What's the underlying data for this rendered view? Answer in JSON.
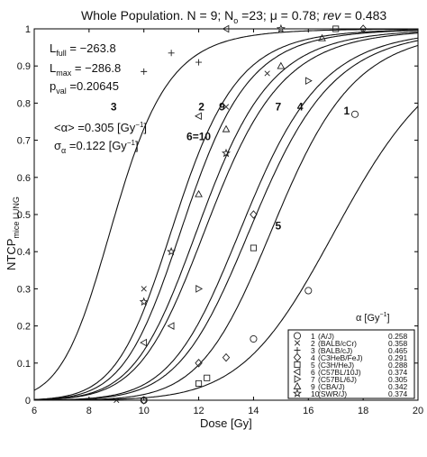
{
  "chart_data": {
    "type": "scatter",
    "title": "Whole Population.  N = 9; N",
    "title_sub": "o",
    "title_rest": " =23; μ = 0.78; ",
    "title_italic": "rev",
    "title_end": " = 0.483",
    "xlabel": "Dose [Gy]",
    "ylabel_main": "NTCP",
    "ylabel_sub": "mice LUNG",
    "xlim": [
      6,
      20
    ],
    "ylim": [
      0,
      1
    ],
    "xticks": [
      6,
      8,
      10,
      12,
      14,
      16,
      18,
      20
    ],
    "yticks": [
      0,
      0.1,
      0.2,
      0.3,
      0.4,
      0.5,
      0.6,
      0.7,
      0.8,
      0.9,
      1
    ],
    "x_tick_labels": [
      "6",
      "8",
      "10",
      "12",
      "14",
      "16",
      "18",
      "20"
    ],
    "y_tick_labels": [
      "0",
      "0.1",
      "0.2",
      "0.3",
      "0.4",
      "0.5",
      "0.6",
      "0.7",
      "0.8",
      "0.9",
      "1"
    ],
    "stats": {
      "l_full_label": "L",
      "l_full_sub": "full",
      "l_full_value": " = −263.8",
      "l_max_label": "L",
      "l_max_sub": "max",
      "l_max_value": " = −286.8",
      "p_val_label": "p",
      "p_val_sub": "val",
      "p_val_value": " =0.20645",
      "alpha_mean_label": "<α> =0.305 [Gy",
      "alpha_mean_exp": "−1",
      "alpha_mean_end": "]",
      "alpha_sigma_label": "σ",
      "alpha_sigma_sub": "α",
      "alpha_sigma_value": " =0.122 [Gy",
      "alpha_sigma_exp": "−1",
      "alpha_sigma_end": "]"
    },
    "legend_header": "α [Gy",
    "legend_header_exp": "−1",
    "legend_header_end": "]",
    "legend_position": "bottom-right",
    "series": [
      {
        "id": "1",
        "name": "(A/J)",
        "alpha": 0.258,
        "alpha_text": "0.258",
        "marker": "circle",
        "d50": 17.3,
        "gamma": 2.3,
        "points": [
          [
            10,
            0.0
          ],
          [
            14,
            0.165
          ],
          [
            16,
            0.295
          ],
          [
            17.7,
            0.77
          ]
        ]
      },
      {
        "id": "2",
        "name": "(BALB/cCr)",
        "alpha": 0.358,
        "alpha_text": "0.358",
        "marker": "x",
        "d50": 12.15,
        "gamma": 2.4,
        "points": [
          [
            9,
            0.0
          ],
          [
            10,
            0.3
          ],
          [
            13,
            0.79
          ],
          [
            14.5,
            0.88
          ]
        ]
      },
      {
        "id": "3",
        "name": "(BALB/cJ)",
        "alpha": 0.465,
        "alpha_text": "0.465",
        "marker": "plus",
        "d50": 8.95,
        "gamma": 2.25,
        "points": [
          [
            10,
            0.885
          ],
          [
            11,
            0.935
          ],
          [
            12,
            0.91
          ]
        ]
      },
      {
        "id": "4",
        "name": "(C3HeB/FeJ)",
        "alpha": 0.291,
        "alpha_text": "0.291",
        "marker": "diamond",
        "d50": 14.9,
        "gamma": 2.6,
        "points": [
          [
            10,
            0.0
          ],
          [
            12,
            0.1
          ],
          [
            13,
            0.115
          ],
          [
            14,
            0.5
          ],
          [
            18,
            1.0
          ]
        ]
      },
      {
        "id": "5",
        "name": "(C3H/HeJ)",
        "alpha": 0.288,
        "alpha_text": "0.288",
        "marker": "square",
        "d50": 14.1,
        "gamma": 2.45,
        "points": [
          [
            12,
            0.045
          ],
          [
            12.3,
            0.06
          ],
          [
            14,
            0.41
          ],
          [
            17,
            1.0
          ]
        ]
      },
      {
        "id": "6",
        "name": "(C57BL/10J)",
        "alpha": 0.374,
        "alpha_text": "0.374",
        "marker": "tri-left",
        "d50": 11.55,
        "gamma": 2.5,
        "points": [
          [
            10,
            0.155
          ],
          [
            11,
            0.2
          ],
          [
            12,
            0.765
          ],
          [
            13,
            1.0
          ]
        ]
      },
      {
        "id": "7",
        "name": "(C57BL/6J)",
        "alpha": 0.305,
        "alpha_text": "0.305",
        "marker": "tri-right",
        "d50": 13.75,
        "gamma": 2.45,
        "points": [
          [
            12,
            0.3
          ],
          [
            16,
            0.86
          ]
        ]
      },
      {
        "id": "9",
        "name": "(CBA/J)",
        "alpha": 0.342,
        "alpha_text": "0.342",
        "marker": "tri-up",
        "d50": 12.45,
        "gamma": 2.35,
        "points": [
          [
            12,
            0.555
          ],
          [
            13,
            0.73
          ],
          [
            15,
            0.9
          ],
          [
            16.5,
            0.975
          ]
        ]
      },
      {
        "id": "10",
        "name": "(SWR/J)",
        "alpha": 0.374,
        "alpha_text": "0.374",
        "marker": "star",
        "d50": 11.2,
        "gamma": 2.5,
        "points": [
          [
            10,
            0.265
          ],
          [
            11,
            0.4
          ],
          [
            13,
            0.665
          ],
          [
            15,
            1.0
          ]
        ]
      }
    ],
    "curve_labels": [
      {
        "text": "3",
        "x": 8.9,
        "y": 0.78
      },
      {
        "text": "2",
        "x": 12.1,
        "y": 0.78
      },
      {
        "text": "9",
        "x": 12.85,
        "y": 0.78
      },
      {
        "text": "6=10",
        "x": 12.0,
        "y": 0.7
      },
      {
        "text": "7",
        "x": 14.9,
        "y": 0.78
      },
      {
        "text": "4",
        "x": 15.7,
        "y": 0.78
      },
      {
        "text": "1",
        "x": 17.4,
        "y": 0.77
      },
      {
        "text": "5",
        "x": 14.9,
        "y": 0.46
      }
    ]
  }
}
